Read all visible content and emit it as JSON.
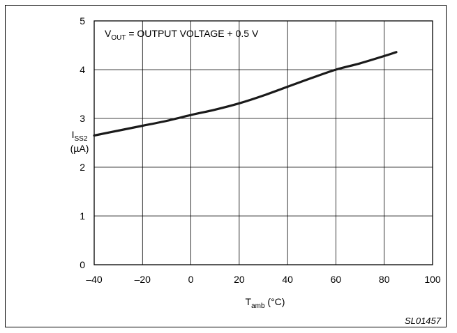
{
  "chart_data": {
    "type": "line",
    "xlabel": {
      "main": "T",
      "sub": "amb",
      "unit": " (°C)"
    },
    "ylabel": {
      "main": "I",
      "sub": "SS2",
      "unit": "(µA)"
    },
    "annotation": {
      "main": "V",
      "sub": "OUT",
      "rest": " = OUTPUT VOLTAGE + 0.5 V"
    },
    "figure_id": "SL01457",
    "xlim": [
      -40,
      100
    ],
    "ylim": [
      0,
      5
    ],
    "x_ticks": [
      -40,
      -20,
      0,
      20,
      40,
      60,
      80,
      100
    ],
    "x_tick_labels": [
      "–40",
      "–20",
      "0",
      "20",
      "40",
      "60",
      "80",
      "100"
    ],
    "y_ticks": [
      0,
      1,
      2,
      3,
      4,
      5
    ],
    "y_tick_labels": [
      "0",
      "1",
      "2",
      "3",
      "4",
      "5"
    ],
    "grid": true,
    "series": [
      {
        "x": [
          -40,
          -30,
          -20,
          -10,
          0,
          10,
          20,
          30,
          40,
          50,
          60,
          70,
          80,
          85
        ],
        "y": [
          2.65,
          2.75,
          2.85,
          2.95,
          3.07,
          3.18,
          3.31,
          3.47,
          3.65,
          3.83,
          4.0,
          4.13,
          4.28,
          4.36
        ]
      }
    ]
  }
}
